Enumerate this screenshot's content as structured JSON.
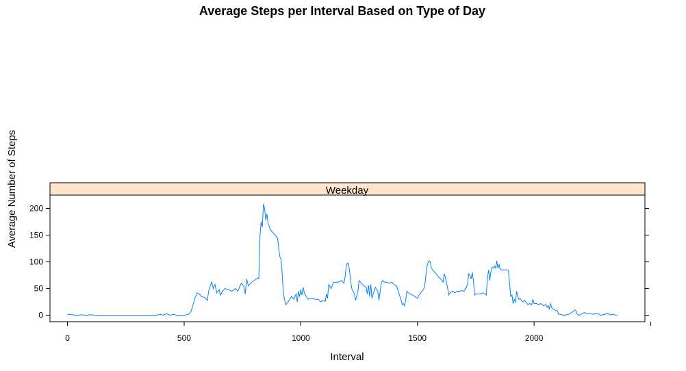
{
  "chart_data": {
    "type": "line",
    "title": "Average Steps per Interval Based on Type of Day",
    "xlabel": "Interval",
    "ylabel": "Average Number of Steps",
    "panel_label": "Weekday",
    "xlim": [
      -75,
      2475
    ],
    "ylim": [
      -12,
      225
    ],
    "x_ticks": [
      0,
      500,
      1000,
      1500,
      2000
    ],
    "y_ticks": [
      0,
      50,
      100,
      150,
      200
    ],
    "grid": false,
    "colors": {
      "line": "#0080ff",
      "strip": "#ffe5cc",
      "frame": "#000000"
    },
    "series": [
      {
        "points": [
          [
            0,
            2
          ],
          [
            20,
            1
          ],
          [
            40,
            0
          ],
          [
            60,
            1
          ],
          [
            80,
            0
          ],
          [
            100,
            1
          ],
          [
            130,
            0
          ],
          [
            160,
            0
          ],
          [
            200,
            0
          ],
          [
            250,
            0
          ],
          [
            300,
            0
          ],
          [
            350,
            0
          ],
          [
            380,
            0
          ],
          [
            400,
            2
          ],
          [
            410,
            0
          ],
          [
            425,
            3
          ],
          [
            440,
            0
          ],
          [
            455,
            2
          ],
          [
            470,
            0
          ],
          [
            500,
            0
          ],
          [
            520,
            2
          ],
          [
            530,
            8
          ],
          [
            545,
            30
          ],
          [
            555,
            42
          ],
          [
            565,
            40
          ],
          [
            575,
            35
          ],
          [
            590,
            33
          ],
          [
            600,
            28
          ],
          [
            605,
            45
          ],
          [
            612,
            55
          ],
          [
            618,
            62
          ],
          [
            625,
            50
          ],
          [
            632,
            58
          ],
          [
            640,
            42
          ],
          [
            650,
            48
          ],
          [
            655,
            38
          ],
          [
            665,
            45
          ],
          [
            675,
            50
          ],
          [
            690,
            48
          ],
          [
            705,
            45
          ],
          [
            720,
            50
          ],
          [
            730,
            45
          ],
          [
            745,
            60
          ],
          [
            755,
            55
          ],
          [
            762,
            40
          ],
          [
            768,
            68
          ],
          [
            775,
            55
          ],
          [
            790,
            62
          ],
          [
            800,
            65
          ],
          [
            815,
            70
          ],
          [
            820,
            68
          ],
          [
            825,
            148
          ],
          [
            830,
            175
          ],
          [
            835,
            165
          ],
          [
            840,
            208
          ],
          [
            845,
            200
          ],
          [
            850,
            178
          ],
          [
            855,
            190
          ],
          [
            860,
            172
          ],
          [
            870,
            160
          ],
          [
            880,
            155
          ],
          [
            890,
            150
          ],
          [
            900,
            145
          ],
          [
            905,
            128
          ],
          [
            910,
            110
          ],
          [
            915,
            105
          ],
          [
            920,
            80
          ],
          [
            925,
            42
          ],
          [
            930,
            30
          ],
          [
            935,
            20
          ],
          [
            940,
            22
          ],
          [
            950,
            28
          ],
          [
            960,
            35
          ],
          [
            970,
            30
          ],
          [
            980,
            40
          ],
          [
            985,
            25
          ],
          [
            990,
            45
          ],
          [
            995,
            35
          ],
          [
            1000,
            48
          ],
          [
            1005,
            38
          ],
          [
            1010,
            52
          ],
          [
            1015,
            42
          ],
          [
            1020,
            38
          ],
          [
            1030,
            30
          ],
          [
            1045,
            32
          ],
          [
            1060,
            30
          ],
          [
            1075,
            30
          ],
          [
            1085,
            25
          ],
          [
            1095,
            28
          ],
          [
            1105,
            26
          ],
          [
            1110,
            40
          ],
          [
            1115,
            32
          ],
          [
            1120,
            58
          ],
          [
            1130,
            50
          ],
          [
            1140,
            62
          ],
          [
            1150,
            62
          ],
          [
            1160,
            62
          ],
          [
            1175,
            65
          ],
          [
            1185,
            60
          ],
          [
            1190,
            72
          ],
          [
            1195,
            92
          ],
          [
            1200,
            98
          ],
          [
            1205,
            96
          ],
          [
            1210,
            80
          ],
          [
            1215,
            60
          ],
          [
            1220,
            48
          ],
          [
            1230,
            40
          ],
          [
            1235,
            28
          ],
          [
            1245,
            45
          ],
          [
            1250,
            65
          ],
          [
            1260,
            60
          ],
          [
            1270,
            55
          ],
          [
            1280,
            52
          ],
          [
            1285,
            40
          ],
          [
            1290,
            56
          ],
          [
            1295,
            35
          ],
          [
            1300,
            58
          ],
          [
            1305,
            32
          ],
          [
            1310,
            40
          ],
          [
            1320,
            52
          ],
          [
            1330,
            45
          ],
          [
            1335,
            28
          ],
          [
            1345,
            60
          ],
          [
            1350,
            65
          ],
          [
            1360,
            62
          ],
          [
            1370,
            62
          ],
          [
            1380,
            60
          ],
          [
            1390,
            62
          ],
          [
            1400,
            58
          ],
          [
            1410,
            55
          ],
          [
            1420,
            42
          ],
          [
            1425,
            35
          ],
          [
            1430,
            28
          ],
          [
            1435,
            20
          ],
          [
            1440,
            22
          ],
          [
            1445,
            18
          ],
          [
            1450,
            30
          ],
          [
            1455,
            45
          ],
          [
            1460,
            42
          ],
          [
            1470,
            40
          ],
          [
            1480,
            38
          ],
          [
            1490,
            35
          ],
          [
            1500,
            32
          ],
          [
            1510,
            40
          ],
          [
            1520,
            45
          ],
          [
            1530,
            52
          ],
          [
            1535,
            70
          ],
          [
            1540,
            90
          ],
          [
            1545,
            98
          ],
          [
            1550,
            102
          ],
          [
            1555,
            100
          ],
          [
            1560,
            88
          ],
          [
            1570,
            82
          ],
          [
            1580,
            78
          ],
          [
            1590,
            72
          ],
          [
            1600,
            68
          ],
          [
            1610,
            62
          ],
          [
            1615,
            78
          ],
          [
            1620,
            70
          ],
          [
            1625,
            60
          ],
          [
            1630,
            50
          ],
          [
            1635,
            38
          ],
          [
            1640,
            42
          ],
          [
            1650,
            45
          ],
          [
            1660,
            42
          ],
          [
            1670,
            45
          ],
          [
            1680,
            45
          ],
          [
            1690,
            46
          ],
          [
            1700,
            45
          ],
          [
            1705,
            50
          ],
          [
            1710,
            52
          ],
          [
            1715,
            60
          ],
          [
            1720,
            78
          ],
          [
            1725,
            75
          ],
          [
            1730,
            68
          ],
          [
            1735,
            80
          ],
          [
            1740,
            65
          ],
          [
            1745,
            38
          ],
          [
            1750,
            40
          ],
          [
            1760,
            40
          ],
          [
            1770,
            40
          ],
          [
            1780,
            42
          ],
          [
            1790,
            40
          ],
          [
            1795,
            38
          ],
          [
            1800,
            70
          ],
          [
            1805,
            85
          ],
          [
            1810,
            65
          ],
          [
            1815,
            82
          ],
          [
            1820,
            90
          ],
          [
            1825,
            88
          ],
          [
            1830,
            92
          ],
          [
            1835,
            88
          ],
          [
            1840,
            102
          ],
          [
            1845,
            88
          ],
          [
            1850,
            95
          ],
          [
            1855,
            86
          ],
          [
            1860,
            85
          ],
          [
            1870,
            85
          ],
          [
            1880,
            85
          ],
          [
            1890,
            84
          ],
          [
            1895,
            60
          ],
          [
            1900,
            35
          ],
          [
            1905,
            38
          ],
          [
            1910,
            22
          ],
          [
            1915,
            30
          ],
          [
            1920,
            25
          ],
          [
            1925,
            45
          ],
          [
            1930,
            35
          ],
          [
            1935,
            30
          ],
          [
            1940,
            32
          ],
          [
            1950,
            25
          ],
          [
            1960,
            28
          ],
          [
            1970,
            22
          ],
          [
            1975,
            20
          ],
          [
            1980,
            22
          ],
          [
            1990,
            20
          ],
          [
            1995,
            30
          ],
          [
            2000,
            22
          ],
          [
            2010,
            22
          ],
          [
            2020,
            20
          ],
          [
            2030,
            22
          ],
          [
            2040,
            18
          ],
          [
            2050,
            20
          ],
          [
            2055,
            15
          ],
          [
            2060,
            18
          ],
          [
            2065,
            12
          ],
          [
            2070,
            22
          ],
          [
            2075,
            15
          ],
          [
            2080,
            12
          ],
          [
            2090,
            10
          ],
          [
            2100,
            8
          ],
          [
            2105,
            2
          ],
          [
            2110,
            2
          ],
          [
            2120,
            1
          ],
          [
            2130,
            0
          ],
          [
            2140,
            1
          ],
          [
            2150,
            2
          ],
          [
            2160,
            5
          ],
          [
            2170,
            8
          ],
          [
            2175,
            10
          ],
          [
            2180,
            8
          ],
          [
            2185,
            2
          ],
          [
            2195,
            0
          ],
          [
            2205,
            3
          ],
          [
            2215,
            5
          ],
          [
            2225,
            4
          ],
          [
            2240,
            3
          ],
          [
            2255,
            2
          ],
          [
            2265,
            4
          ],
          [
            2275,
            3
          ],
          [
            2285,
            0
          ],
          [
            2295,
            1
          ],
          [
            2305,
            2
          ],
          [
            2315,
            4
          ],
          [
            2325,
            1
          ],
          [
            2335,
            2
          ],
          [
            2345,
            1
          ],
          [
            2355,
            0
          ]
        ]
      }
    ]
  }
}
